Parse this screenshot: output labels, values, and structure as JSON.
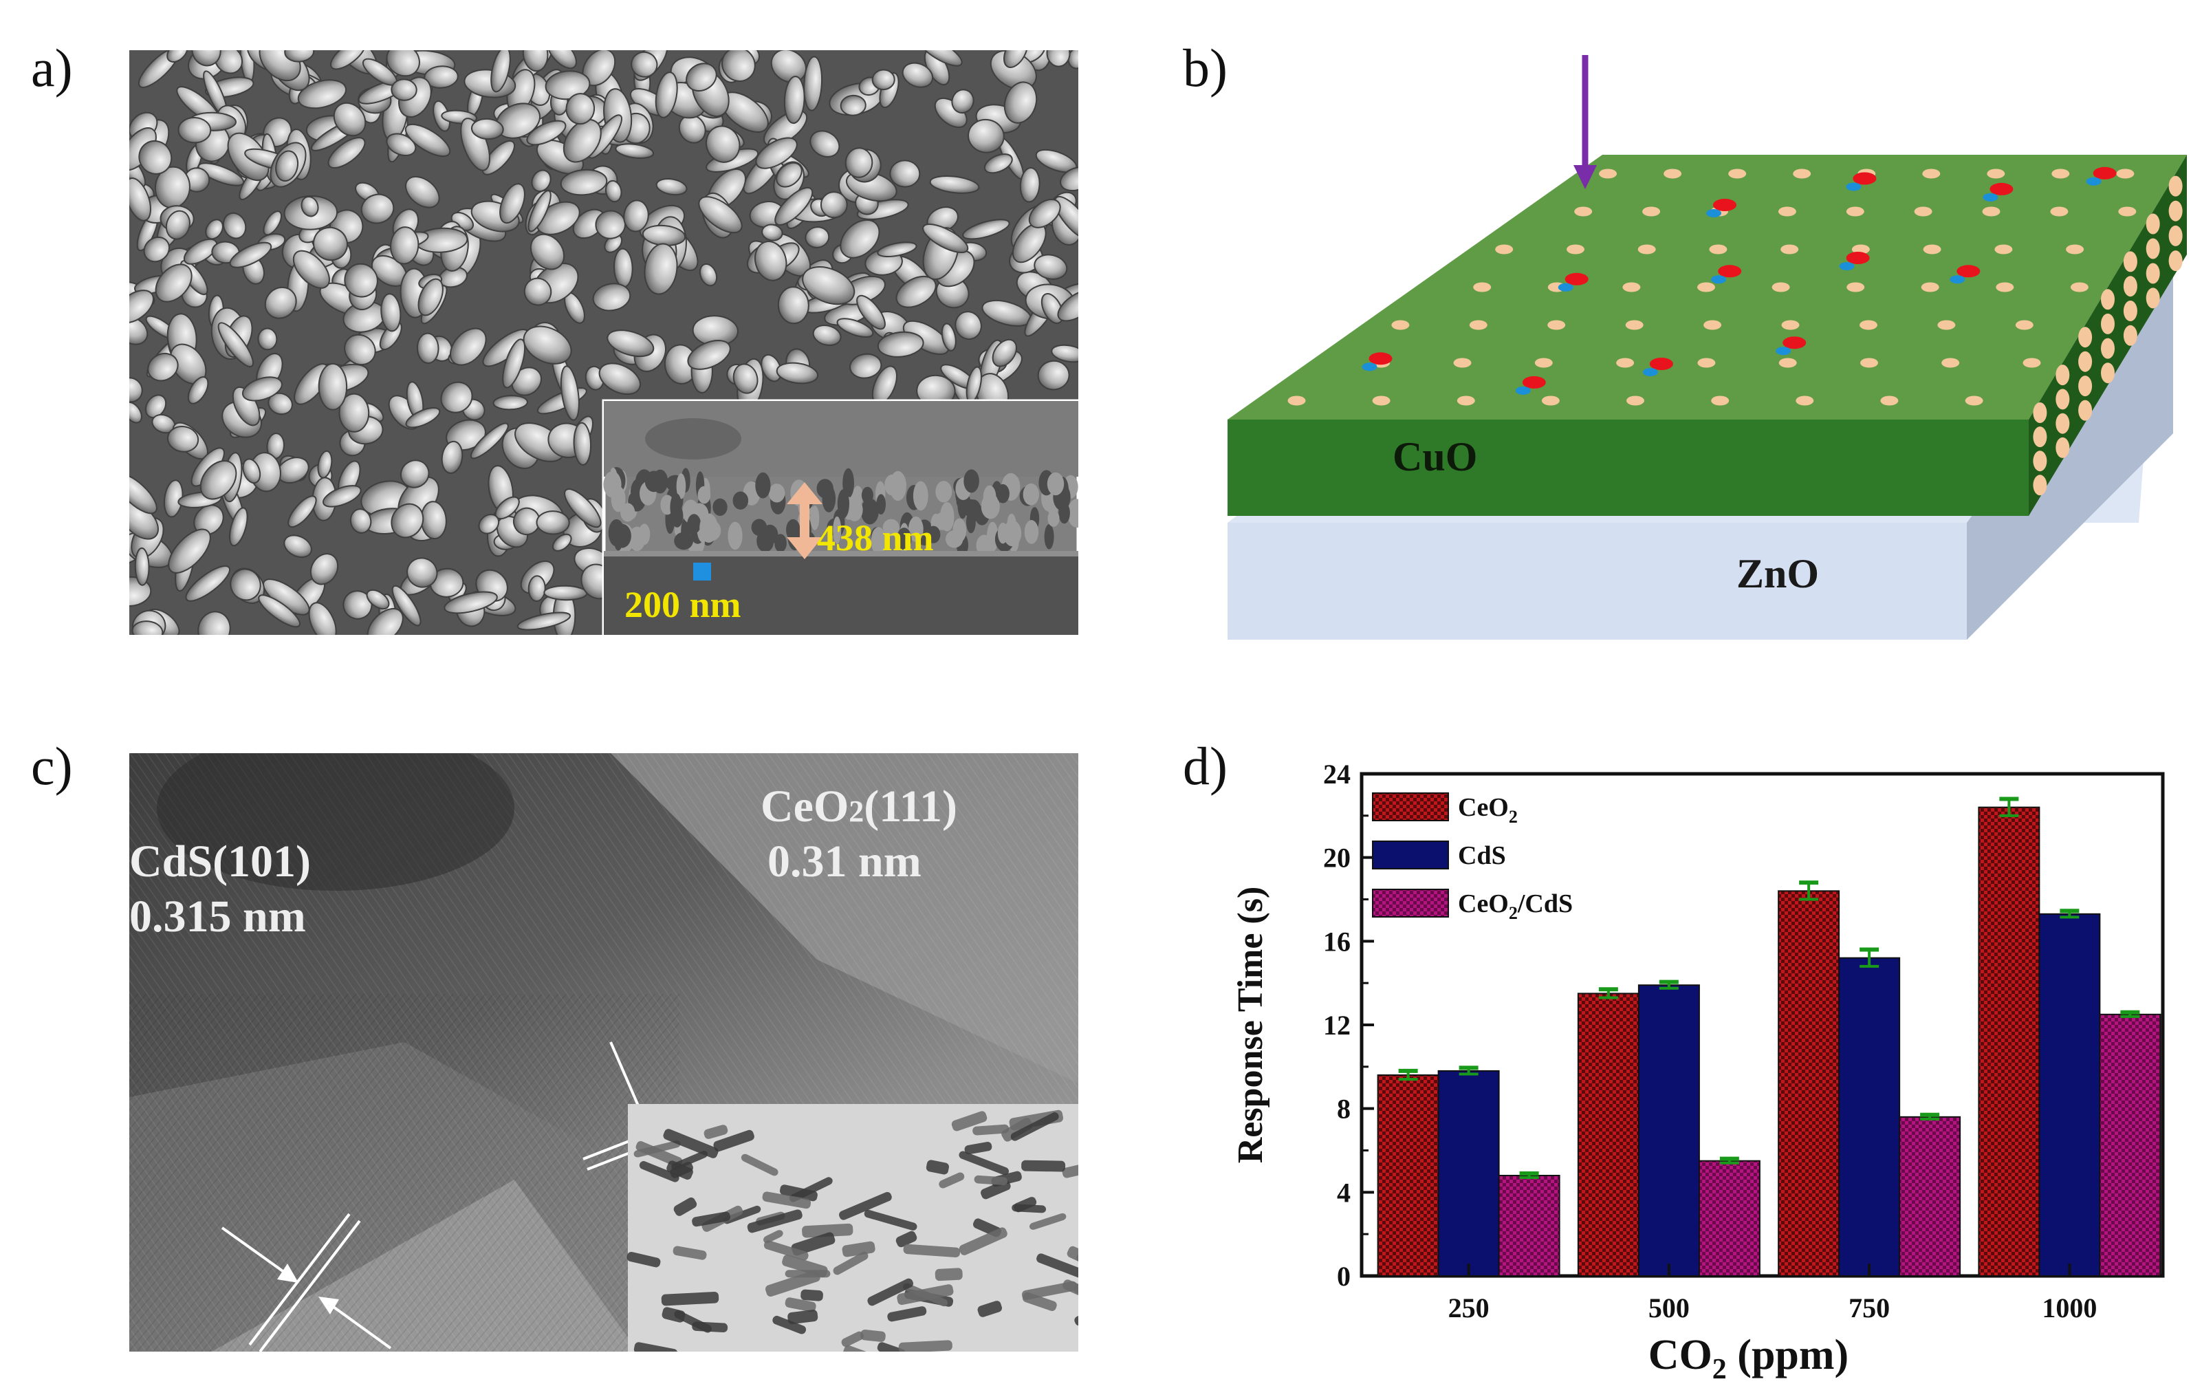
{
  "panel_labels": {
    "a": "a)",
    "b": "b)",
    "c": "c)",
    "d": "d)"
  },
  "panel_a": {
    "thickness_label": "438 nm",
    "scale_bar_label": "200 nm",
    "colors": {
      "annotation": "#f2e600",
      "arrow": "#f0b896",
      "scale_marker": "#1f8fe0"
    }
  },
  "panel_b": {
    "top_layer_label": "CuO",
    "substrate_label": "ZnO",
    "colors": {
      "cuo_top": "#5f9c45",
      "cuo_front": "#2f7a28",
      "cuo_side": "#1f5a1a",
      "zno_top": "#dde6f4",
      "zno_front": "#d4e0f2",
      "zno_side": "#a9b7cc",
      "arrow": "#7a2da8",
      "particle": "#f4c79c",
      "red_site": "#e8131c",
      "blue_site": "#1b8fd8"
    }
  },
  "panel_c": {
    "label_cds_plane": "CdS(101)",
    "label_cds_spacing": "0.315 nm",
    "label_ceo2_plane": "CeO",
    "label_ceo2_sub": "2",
    "label_ceo2_hkl": "(111)",
    "label_ceo2_spacing": "0.31 nm"
  },
  "chart_data": {
    "type": "bar",
    "categories": [
      "250",
      "500",
      "750",
      "1000"
    ],
    "series": [
      {
        "name": "CeO2",
        "values": [
          9.6,
          13.5,
          18.4,
          22.4
        ],
        "errors": [
          0.2,
          0.2,
          0.4,
          0.4
        ],
        "color": "#c0161c"
      },
      {
        "name": "CdS",
        "values": [
          9.8,
          13.9,
          15.2,
          17.3
        ],
        "errors": [
          0.15,
          0.15,
          0.4,
          0.15
        ],
        "color": "#0b0f6e"
      },
      {
        "name": "CeO2/CdS",
        "values": [
          4.8,
          5.5,
          7.6,
          12.5
        ],
        "errors": [
          0.1,
          0.1,
          0.1,
          0.1
        ],
        "color": "#a8127a"
      }
    ],
    "legend_labels": [
      {
        "main": "CeO",
        "sub": "2",
        "rest": ""
      },
      {
        "main": "CdS",
        "sub": "",
        "rest": ""
      },
      {
        "main": "CeO",
        "sub": "2",
        "rest": "/CdS"
      }
    ],
    "xlabel_main": "CO",
    "xlabel_sub": "2",
    "xlabel_rest": " (ppm)",
    "ylabel": "Response Time (s)",
    "ylim": [
      0,
      24
    ],
    "yticks": [
      "0",
      "4",
      "8",
      "12",
      "16",
      "20",
      "24"
    ],
    "legend_position": "top-left",
    "error_bar_color": "#1a9a1a"
  }
}
